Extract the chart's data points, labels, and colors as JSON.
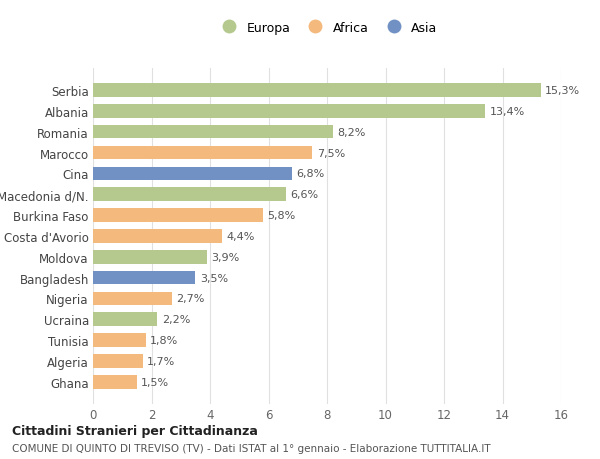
{
  "categories": [
    "Ghana",
    "Algeria",
    "Tunisia",
    "Ucraina",
    "Nigeria",
    "Bangladesh",
    "Moldova",
    "Costa d'Avorio",
    "Burkina Faso",
    "Macedonia d/N.",
    "Cina",
    "Marocco",
    "Romania",
    "Albania",
    "Serbia"
  ],
  "values": [
    1.5,
    1.7,
    1.8,
    2.2,
    2.7,
    3.5,
    3.9,
    4.4,
    5.8,
    6.6,
    6.8,
    7.5,
    8.2,
    13.4,
    15.3
  ],
  "continents": [
    "Africa",
    "Africa",
    "Africa",
    "Europa",
    "Africa",
    "Asia",
    "Europa",
    "Africa",
    "Africa",
    "Europa",
    "Asia",
    "Africa",
    "Europa",
    "Europa",
    "Europa"
  ],
  "continent_colors": {
    "Europa": "#b5c98e",
    "Africa": "#f4b97c",
    "Asia": "#7191c4"
  },
  "label_texts": [
    "1,5%",
    "1,7%",
    "1,8%",
    "2,2%",
    "2,7%",
    "3,5%",
    "3,9%",
    "4,4%",
    "5,8%",
    "6,6%",
    "6,8%",
    "7,5%",
    "8,2%",
    "13,4%",
    "15,3%"
  ],
  "title": "Cittadini Stranieri per Cittadinanza",
  "subtitle": "COMUNE DI QUINTO DI TREVISO (TV) - Dati ISTAT al 1° gennaio - Elaborazione TUTTITALIA.IT",
  "xlim": [
    0,
    16
  ],
  "xticks": [
    0,
    2,
    4,
    6,
    8,
    10,
    12,
    14,
    16
  ],
  "background_color": "#ffffff",
  "grid_color": "#e0e0e0",
  "legend_labels": [
    "Europa",
    "Africa",
    "Asia"
  ],
  "legend_colors": [
    "#b5c98e",
    "#f4b97c",
    "#7191c4"
  ]
}
